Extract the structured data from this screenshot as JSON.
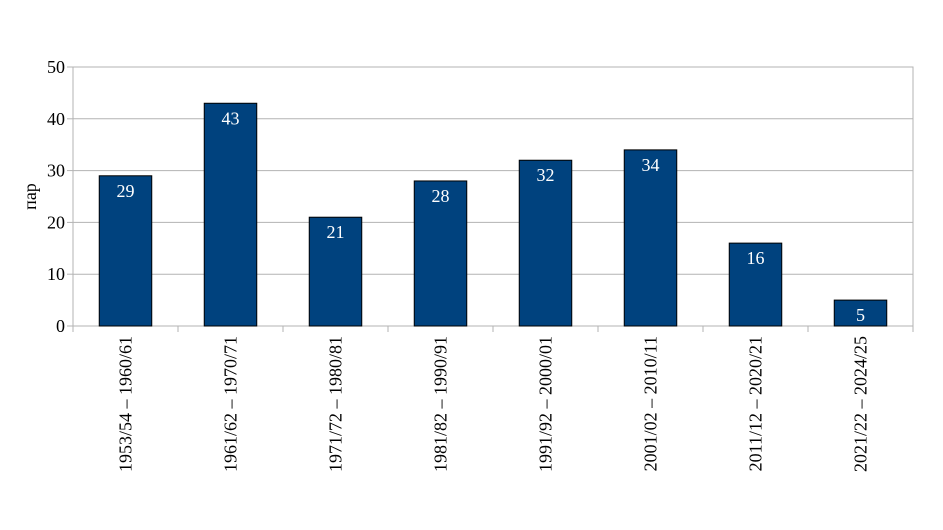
{
  "chart_data": {
    "type": "bar",
    "title": "",
    "xlabel": "",
    "ylabel": "пар",
    "ylim": [
      0,
      50
    ],
    "yticks": [
      0,
      10,
      20,
      30,
      40,
      50
    ],
    "grid": true,
    "legend": "none",
    "bar_color": "#00427E",
    "categories": [
      "1953/54 – 1960/61",
      "1961/62 – 1970/71",
      "1971/72 – 1980/81",
      "1981/82 – 1990/91",
      "1991/92 – 2000/01",
      "2001/02 – 2010/11",
      "2011/12 – 2020/21",
      "2021/22 – 2024/25"
    ],
    "values": [
      29,
      43,
      21,
      28,
      32,
      34,
      16,
      5
    ],
    "data_labels": true
  }
}
